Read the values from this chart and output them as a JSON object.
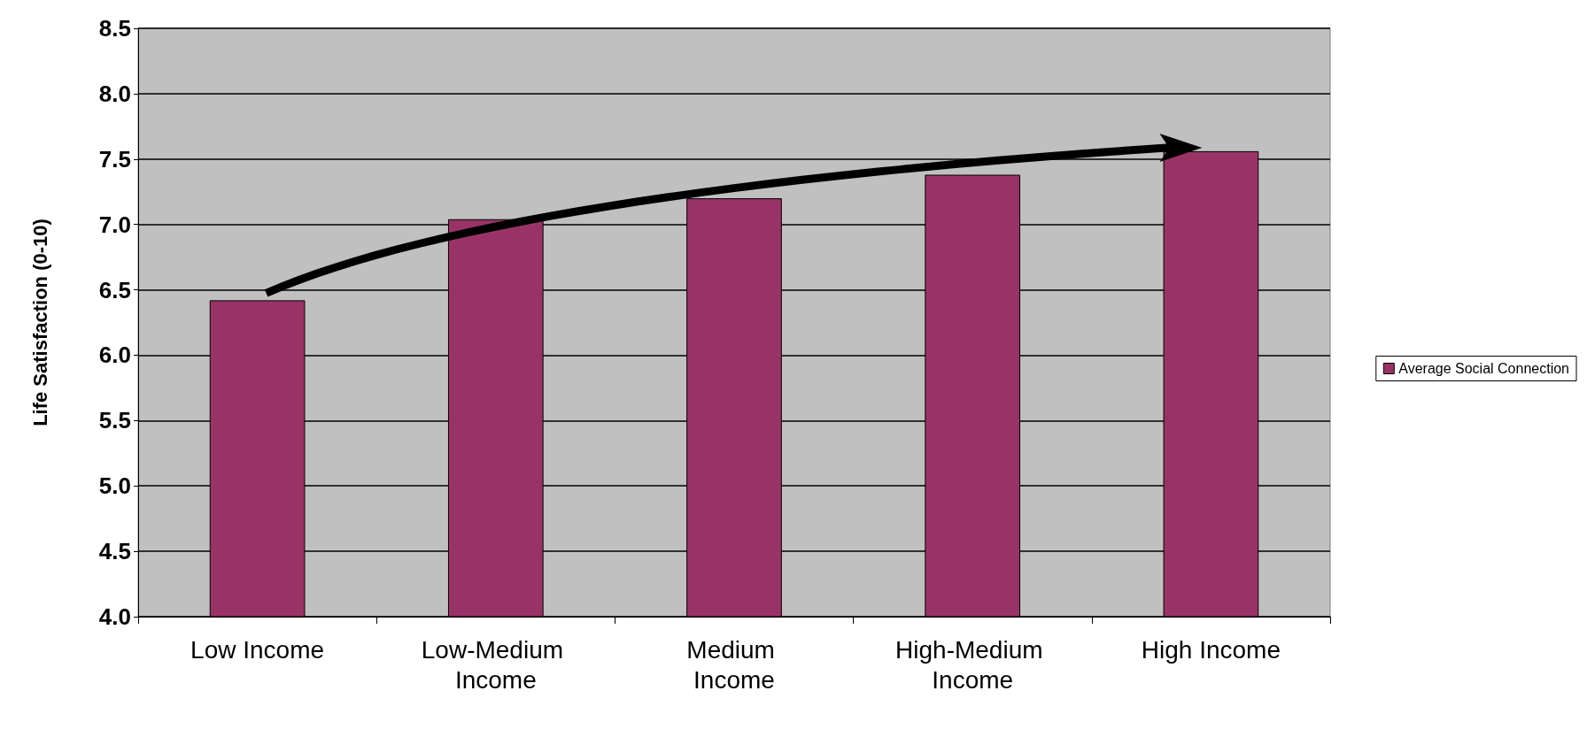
{
  "chart_data": {
    "type": "bar",
    "ylabel": "Life Satisfaction (0-10)",
    "categories": [
      "Low Income",
      "Low-Medium Income",
      "Medium Income",
      "High-Medium Income",
      "High Income"
    ],
    "series": [
      {
        "name": "Average Social Connection",
        "color": "#993366",
        "values": [
          6.42,
          7.04,
          7.2,
          7.38,
          7.56
        ]
      }
    ],
    "ylim": [
      4,
      8.5
    ],
    "yticks": [
      {
        "value": 4,
        "label": "4.0"
      },
      {
        "value": 4.5,
        "label": "4.5"
      },
      {
        "value": 5,
        "label": "5.0"
      },
      {
        "value": 5.5,
        "label": "5.5"
      },
      {
        "value": 6,
        "label": "6.0"
      },
      {
        "value": 6.5,
        "label": "6.5"
      },
      {
        "value": 7,
        "label": "7.0"
      },
      {
        "value": 7.5,
        "label": "7.5"
      },
      {
        "value": 8,
        "label": "8.0"
      },
      {
        "value": 8.5,
        "label": "8.5"
      }
    ],
    "grid": "y",
    "legend": "right"
  }
}
